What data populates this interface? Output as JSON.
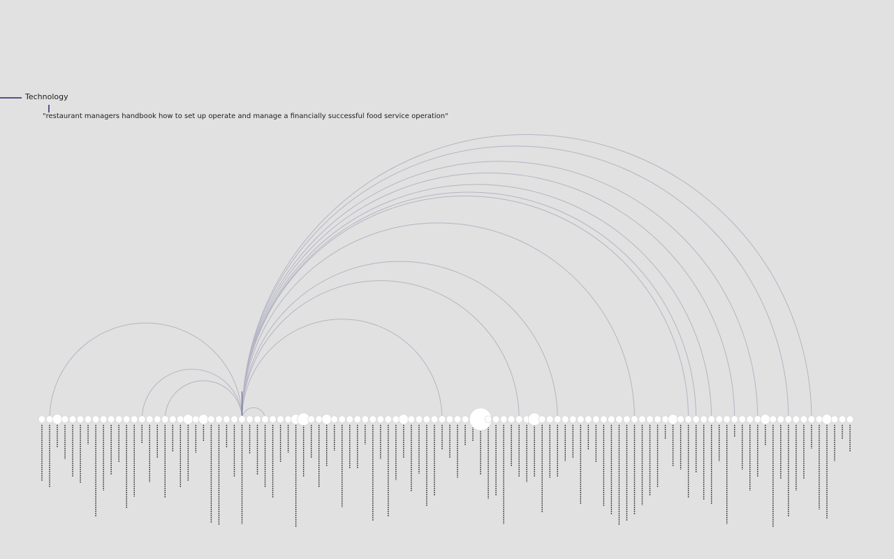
{
  "legend": {
    "category_label": "Technology",
    "category_color": "#54548a"
  },
  "selection": {
    "title": "\"restaurant managers handbook how to set up operate and manage a financially successful food service operation\""
  },
  "colors": {
    "background": "#e1e1e1",
    "arc": "#b4b4c4",
    "arc_highlight": "#6a6a9a",
    "node_fill": "#ffffff",
    "node_stroke": "#d0d0d0",
    "label_color": "#111111"
  },
  "diagram": {
    "type": "arc-diagram",
    "node_count": 106,
    "selected_index": 26,
    "node_weights": [
      1,
      1,
      2,
      1,
      1,
      1,
      1,
      1,
      1,
      1,
      1,
      1,
      1,
      1,
      1,
      1,
      1,
      1,
      1,
      2,
      1,
      2,
      1,
      1,
      1,
      1,
      1,
      1,
      1,
      1,
      1,
      1,
      1,
      2,
      3,
      1,
      1,
      2,
      1,
      1,
      1,
      1,
      1,
      1,
      1,
      1,
      1,
      2,
      1,
      1,
      1,
      1,
      1,
      1,
      1,
      1,
      1,
      6,
      1,
      1,
      1,
      1,
      1,
      1,
      3,
      1,
      1,
      1,
      1,
      1,
      1,
      1,
      1,
      1,
      1,
      1,
      1,
      1,
      1,
      1,
      1,
      1,
      2,
      1,
      1,
      1,
      1,
      1,
      1,
      1,
      1,
      1,
      1,
      1,
      2,
      1,
      1,
      1,
      1,
      1,
      1,
      1,
      2,
      1,
      1,
      1
    ],
    "links": [
      {
        "source": 26,
        "target": 1
      },
      {
        "source": 26,
        "target": 13
      },
      {
        "source": 26,
        "target": 16
      },
      {
        "source": 26,
        "target": 29
      },
      {
        "source": 26,
        "target": 52
      },
      {
        "source": 26,
        "target": 62
      },
      {
        "source": 26,
        "target": 67
      },
      {
        "source": 26,
        "target": 77
      },
      {
        "source": 26,
        "target": 84
      },
      {
        "source": 26,
        "target": 85
      },
      {
        "source": 26,
        "target": 87
      },
      {
        "source": 26,
        "target": 90
      },
      {
        "source": 26,
        "target": 93
      },
      {
        "source": 26,
        "target": 97
      },
      {
        "source": 26,
        "target": 100
      }
    ]
  }
}
